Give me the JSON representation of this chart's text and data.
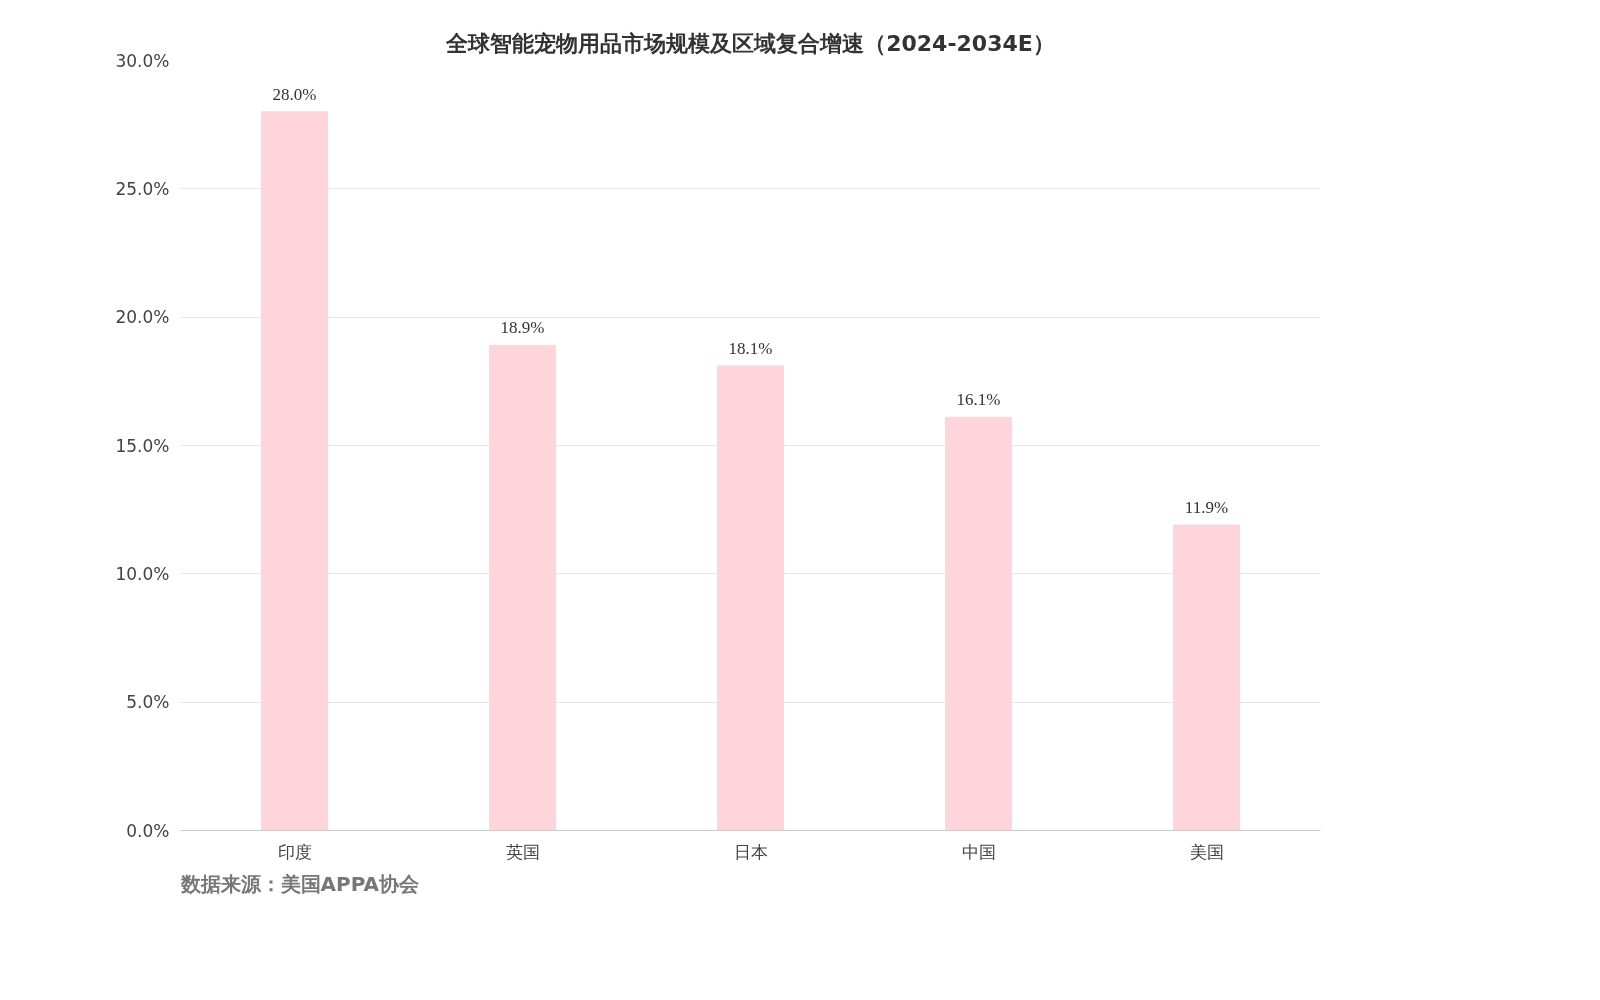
{
  "chart_data": {
    "type": "bar",
    "title": "全球智能宠物用品市场规模及区域复合增速（2024-2034E）",
    "categories": [
      "印度",
      "英国",
      "日本",
      "中国",
      "美国"
    ],
    "values": [
      28.0,
      18.9,
      18.1,
      16.1,
      11.9
    ],
    "value_labels": [
      "28.0%",
      "18.9%",
      "18.1%",
      "16.1%",
      "11.9%"
    ],
    "color": "#ffd4da",
    "ylim": [
      0,
      30
    ],
    "yticks": [
      {
        "value": 0,
        "label": "0.0%"
      },
      {
        "value": 5,
        "label": "5.0%"
      },
      {
        "value": 10,
        "label": "10.0%"
      },
      {
        "value": 15,
        "label": "15.0%"
      },
      {
        "value": 20,
        "label": "20.0%"
      },
      {
        "value": 25,
        "label": "25.0%"
      },
      {
        "value": 30,
        "label": "30.0%"
      }
    ],
    "grid": "y",
    "annotations": [
      "数据来源：美国APPA协会"
    ]
  }
}
